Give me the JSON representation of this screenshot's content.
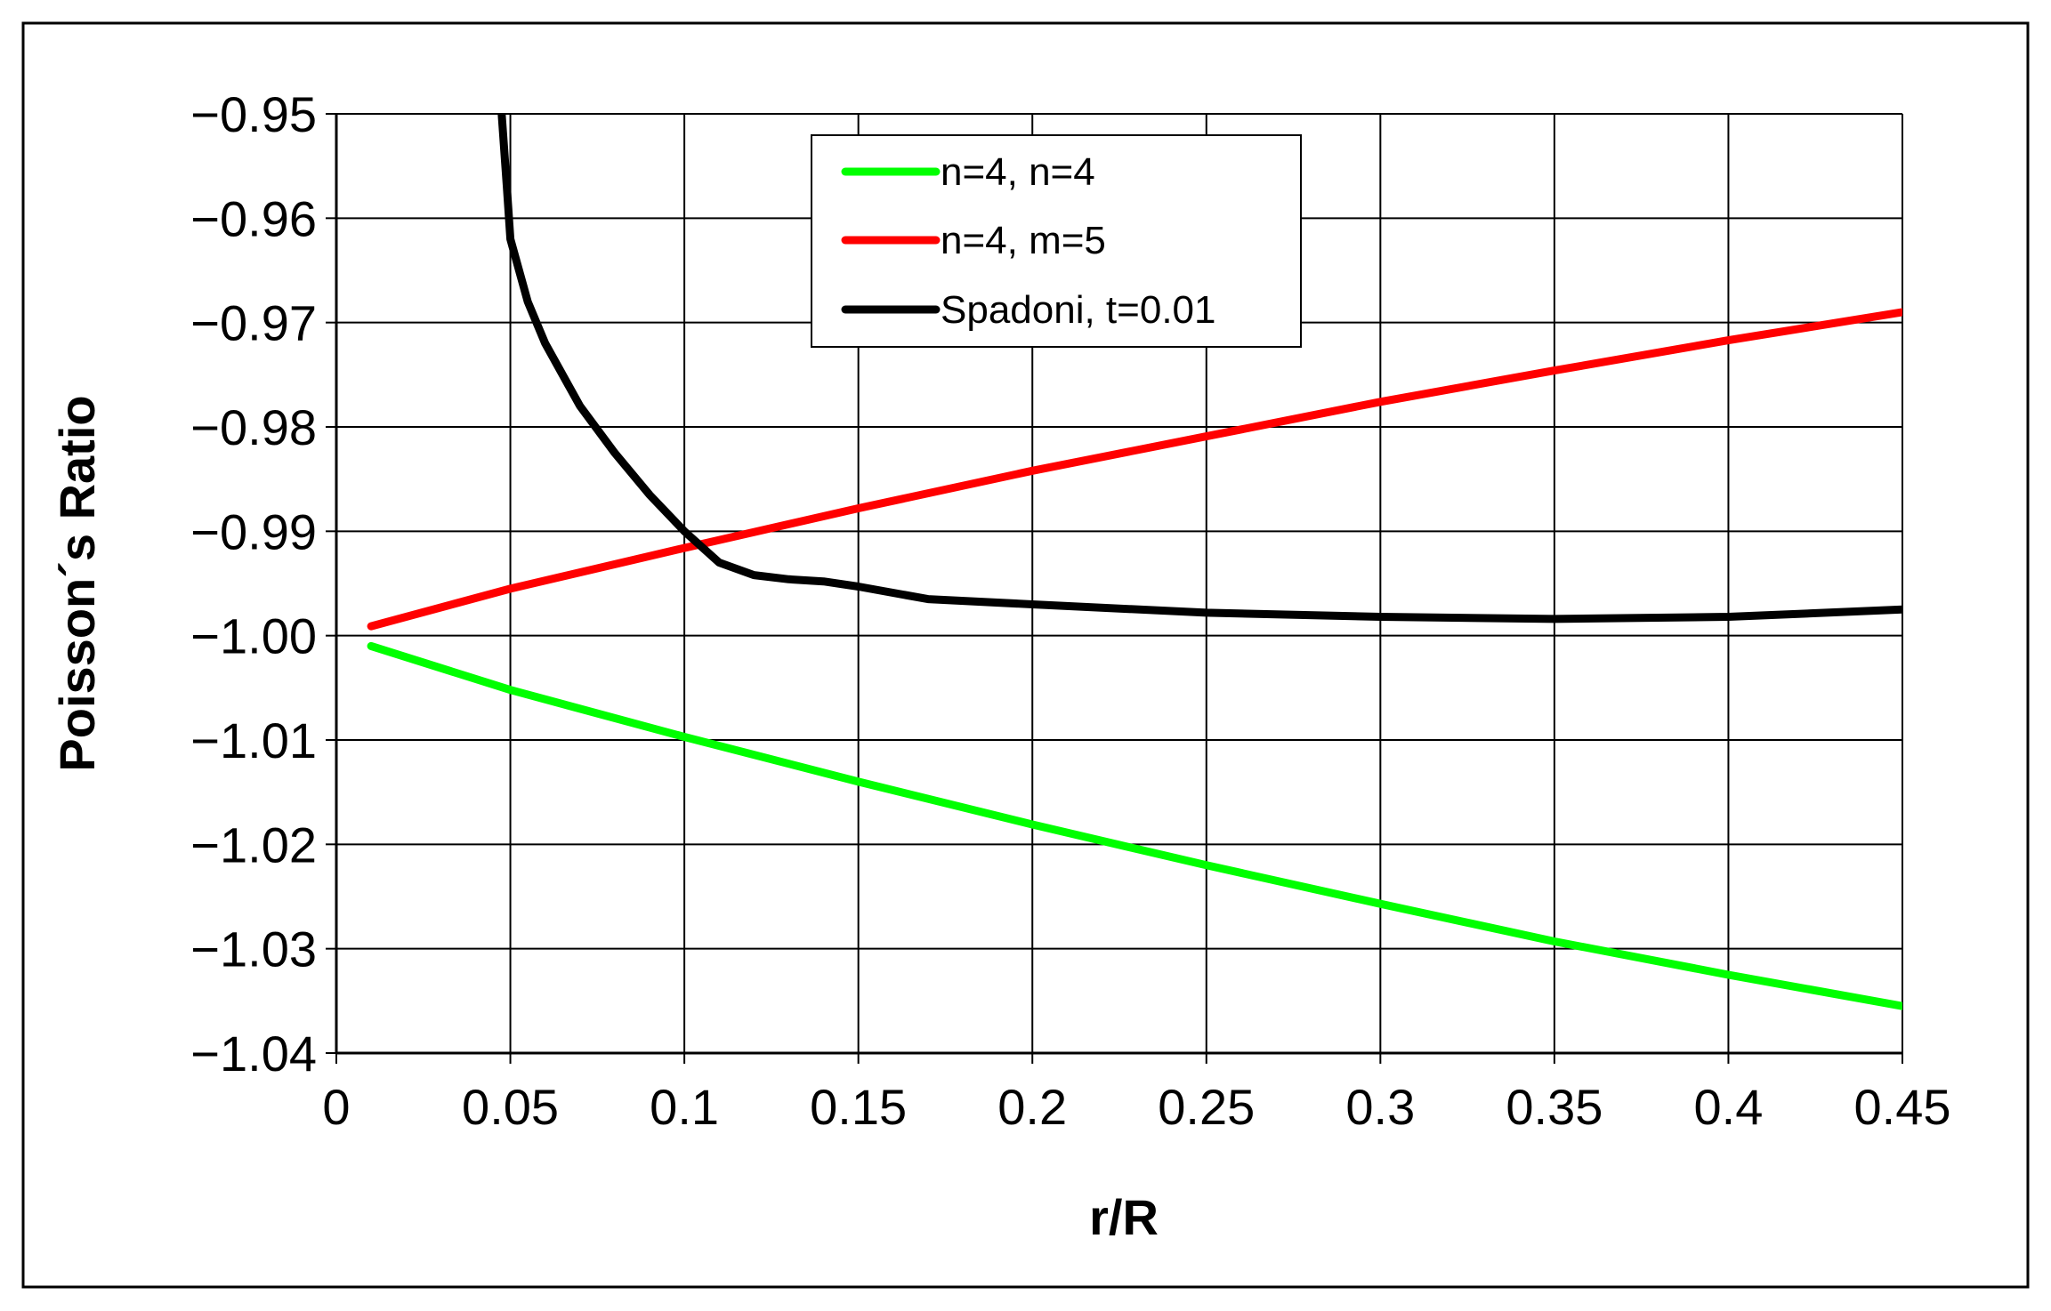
{
  "chart_data": {
    "type": "line",
    "xlabel": "r/R",
    "ylabel": "Poisson´s Ratio",
    "xlim": [
      0,
      0.45
    ],
    "ylim": [
      -1.04,
      -0.95
    ],
    "xticks": [
      0,
      0.05,
      0.1,
      0.15,
      0.2,
      0.25,
      0.3,
      0.35,
      0.4,
      0.45
    ],
    "xtick_labels": [
      "0",
      "0.05",
      "0.1",
      "0.15",
      "0.2",
      "0.25",
      "0.3",
      "0.35",
      "0.4",
      "0.45"
    ],
    "yticks": [
      -0.95,
      -0.96,
      -0.97,
      -0.98,
      -0.99,
      -1.0,
      -1.01,
      -1.02,
      -1.03,
      -1.04
    ],
    "ytick_labels": [
      "−0.95",
      "−0.96",
      "−0.97",
      "−0.98",
      "−0.99",
      "−1.00",
      "−1.01",
      "−1.02",
      "−1.03",
      "−1.04"
    ],
    "grid": true,
    "legend_position": "top-center",
    "series": [
      {
        "name": "n=4, n=4",
        "color": "#00ff00",
        "x": [
          0.01,
          0.05,
          0.1,
          0.15,
          0.2,
          0.25,
          0.3,
          0.35,
          0.4,
          0.45
        ],
        "y": [
          -1.001,
          -1.0052,
          -1.0097,
          -1.014,
          -1.0181,
          -1.022,
          -1.0257,
          -1.0293,
          -1.0325,
          -1.0355
        ]
      },
      {
        "name": "n=4, m=5",
        "color": "#ff0000",
        "x": [
          0.01,
          0.05,
          0.1,
          0.15,
          0.2,
          0.25,
          0.3,
          0.35,
          0.4,
          0.45
        ],
        "y": [
          -0.9991,
          -0.9955,
          -0.9916,
          -0.9878,
          -0.9842,
          -0.9809,
          -0.9776,
          -0.9746,
          -0.9717,
          -0.969
        ]
      },
      {
        "name": "Spadoni, t=0.01",
        "color": "#000000",
        "x": [
          0.0475,
          0.049,
          0.05,
          0.055,
          0.06,
          0.07,
          0.08,
          0.09,
          0.1,
          0.11,
          0.12,
          0.13,
          0.14,
          0.15,
          0.17,
          0.2,
          0.25,
          0.3,
          0.35,
          0.4,
          0.45
        ],
        "y": [
          -0.95,
          -0.957,
          -0.962,
          -0.968,
          -0.972,
          -0.978,
          -0.9825,
          -0.9865,
          -0.99,
          -0.993,
          -0.9942,
          -0.9946,
          -0.9948,
          -0.9953,
          -0.9965,
          -0.997,
          -0.9978,
          -0.9982,
          -0.9984,
          -0.9982,
          -0.9975
        ]
      }
    ]
  }
}
